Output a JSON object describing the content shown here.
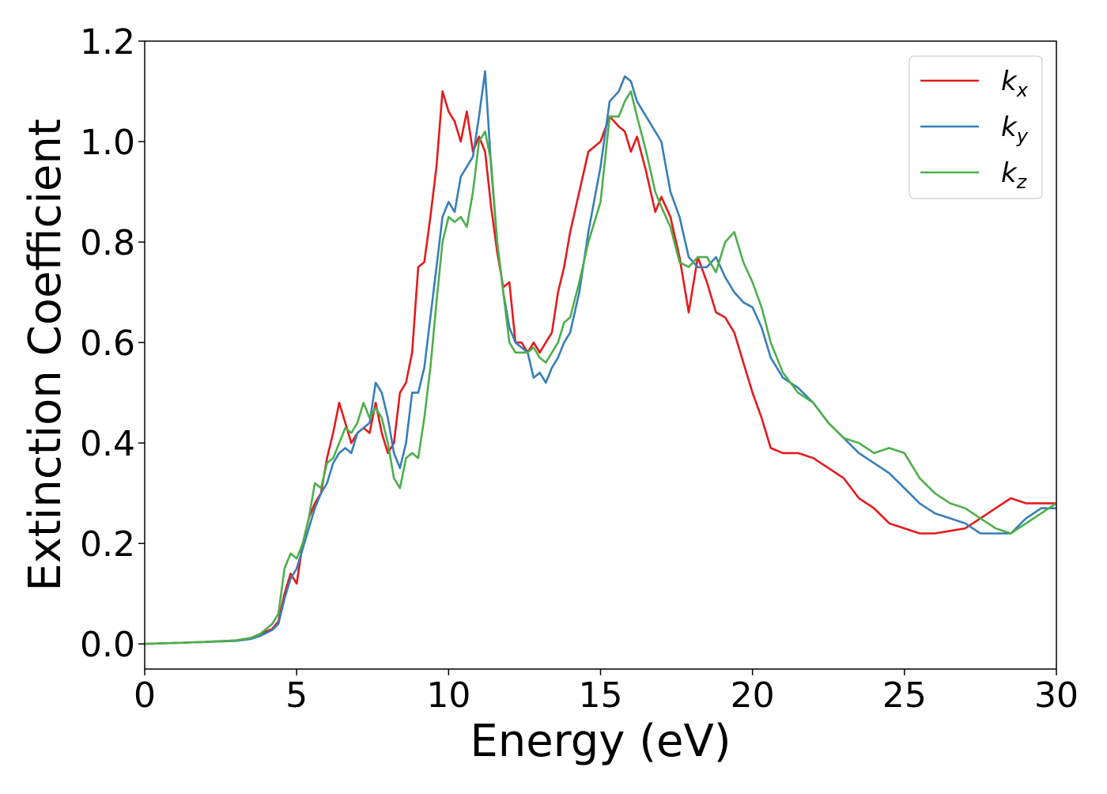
{
  "chart_data": {
    "type": "line",
    "xlabel": "Energy (eV)",
    "ylabel": "Extinction Coefficient",
    "xlim": [
      0,
      30
    ],
    "ylim": [
      -0.05,
      1.2
    ],
    "xticks": [
      "0",
      "5",
      "10",
      "15",
      "20",
      "25",
      "30"
    ],
    "yticks": [
      "0.0",
      "0.2",
      "0.4",
      "0.6",
      "0.8",
      "1.0",
      "1.2"
    ],
    "grid": false,
    "legend_position": "top-right",
    "series": [
      {
        "name": "k",
        "subscript": "x",
        "color": "#e41a1c",
        "x": [
          0,
          1,
          2,
          3,
          3.5,
          3.8,
          4.0,
          4.2,
          4.4,
          4.6,
          4.8,
          5.0,
          5.2,
          5.4,
          5.6,
          5.8,
          6.0,
          6.2,
          6.4,
          6.6,
          6.8,
          7.0,
          7.2,
          7.4,
          7.6,
          7.8,
          8.0,
          8.2,
          8.4,
          8.6,
          8.8,
          9.0,
          9.2,
          9.4,
          9.6,
          9.8,
          10.0,
          10.2,
          10.4,
          10.6,
          10.8,
          11.0,
          11.2,
          11.4,
          11.6,
          11.8,
          12.0,
          12.2,
          12.4,
          12.6,
          12.8,
          13.0,
          13.2,
          13.4,
          13.6,
          13.8,
          14.0,
          14.3,
          14.6,
          15.0,
          15.3,
          15.6,
          15.8,
          16.0,
          16.2,
          16.5,
          16.8,
          17.0,
          17.3,
          17.6,
          17.9,
          18.2,
          18.5,
          18.8,
          19.1,
          19.4,
          19.7,
          20.0,
          20.3,
          20.6,
          21.0,
          21.5,
          22.0,
          22.5,
          23.0,
          23.5,
          24.0,
          24.5,
          25.0,
          25.5,
          26.0,
          26.5,
          27.0,
          27.5,
          28.0,
          28.5,
          29.0,
          29.5,
          30.0
        ],
        "y": [
          0.0,
          0.002,
          0.004,
          0.007,
          0.012,
          0.018,
          0.025,
          0.03,
          0.045,
          0.1,
          0.14,
          0.12,
          0.2,
          0.25,
          0.28,
          0.3,
          0.37,
          0.42,
          0.48,
          0.44,
          0.4,
          0.42,
          0.43,
          0.42,
          0.48,
          0.42,
          0.38,
          0.4,
          0.5,
          0.52,
          0.58,
          0.75,
          0.76,
          0.85,
          0.95,
          1.1,
          1.06,
          1.04,
          1.0,
          1.06,
          0.98,
          1.01,
          0.98,
          0.87,
          0.78,
          0.71,
          0.72,
          0.6,
          0.6,
          0.58,
          0.6,
          0.58,
          0.6,
          0.62,
          0.7,
          0.75,
          0.82,
          0.9,
          0.98,
          1.0,
          1.05,
          1.03,
          1.02,
          0.98,
          1.01,
          0.94,
          0.86,
          0.89,
          0.85,
          0.77,
          0.66,
          0.77,
          0.72,
          0.66,
          0.65,
          0.62,
          0.56,
          0.5,
          0.45,
          0.39,
          0.38,
          0.38,
          0.37,
          0.35,
          0.33,
          0.29,
          0.27,
          0.24,
          0.23,
          0.22,
          0.22,
          0.225,
          0.23,
          0.25,
          0.27,
          0.29,
          0.28,
          0.28,
          0.28
        ]
      },
      {
        "name": "k",
        "subscript": "y",
        "color": "#377eb8",
        "x": [
          0,
          1,
          2,
          3,
          3.5,
          3.8,
          4.0,
          4.2,
          4.4,
          4.6,
          4.8,
          5.0,
          5.2,
          5.4,
          5.6,
          5.8,
          6.0,
          6.2,
          6.4,
          6.6,
          6.8,
          7.0,
          7.2,
          7.4,
          7.6,
          7.8,
          8.0,
          8.2,
          8.4,
          8.6,
          8.8,
          9.0,
          9.2,
          9.4,
          9.6,
          9.8,
          10.0,
          10.2,
          10.4,
          10.6,
          10.8,
          11.0,
          11.2,
          11.4,
          11.6,
          11.8,
          12.0,
          12.2,
          12.4,
          12.6,
          12.8,
          13.0,
          13.2,
          13.4,
          13.6,
          13.8,
          14.0,
          14.3,
          14.6,
          15.0,
          15.3,
          15.6,
          15.8,
          16.0,
          16.2,
          16.5,
          16.8,
          17.0,
          17.3,
          17.6,
          17.9,
          18.2,
          18.5,
          18.8,
          19.1,
          19.4,
          19.7,
          20.0,
          20.3,
          20.6,
          21.0,
          21.5,
          22.0,
          22.5,
          23.0,
          23.5,
          24.0,
          24.5,
          25.0,
          25.5,
          26.0,
          26.5,
          27.0,
          27.5,
          28.0,
          28.5,
          29.0,
          29.5,
          30.0
        ],
        "y": [
          0.0,
          0.002,
          0.004,
          0.006,
          0.01,
          0.016,
          0.022,
          0.028,
          0.04,
          0.09,
          0.13,
          0.15,
          0.19,
          0.23,
          0.27,
          0.3,
          0.32,
          0.36,
          0.38,
          0.39,
          0.38,
          0.42,
          0.43,
          0.44,
          0.52,
          0.5,
          0.45,
          0.38,
          0.35,
          0.4,
          0.5,
          0.5,
          0.55,
          0.65,
          0.75,
          0.85,
          0.88,
          0.86,
          0.93,
          0.95,
          0.97,
          1.05,
          1.14,
          0.95,
          0.8,
          0.7,
          0.63,
          0.6,
          0.59,
          0.58,
          0.53,
          0.54,
          0.52,
          0.55,
          0.57,
          0.6,
          0.62,
          0.7,
          0.82,
          0.95,
          1.08,
          1.1,
          1.13,
          1.12,
          1.08,
          1.05,
          1.02,
          1.0,
          0.9,
          0.85,
          0.77,
          0.75,
          0.75,
          0.77,
          0.73,
          0.7,
          0.68,
          0.67,
          0.63,
          0.57,
          0.53,
          0.51,
          0.48,
          0.44,
          0.41,
          0.38,
          0.36,
          0.34,
          0.31,
          0.28,
          0.26,
          0.25,
          0.24,
          0.22,
          0.22,
          0.22,
          0.25,
          0.27,
          0.27
        ]
      },
      {
        "name": "k",
        "subscript": "z",
        "color": "#4daf4a",
        "x": [
          0,
          1,
          2,
          3,
          3.5,
          3.8,
          4.0,
          4.2,
          4.4,
          4.6,
          4.8,
          5.0,
          5.2,
          5.4,
          5.6,
          5.8,
          6.0,
          6.2,
          6.4,
          6.6,
          6.8,
          7.0,
          7.2,
          7.4,
          7.6,
          7.8,
          8.0,
          8.2,
          8.4,
          8.6,
          8.8,
          9.0,
          9.2,
          9.4,
          9.6,
          9.8,
          10.0,
          10.2,
          10.4,
          10.6,
          10.8,
          11.0,
          11.2,
          11.4,
          11.6,
          11.8,
          12.0,
          12.2,
          12.4,
          12.6,
          12.8,
          13.0,
          13.2,
          13.4,
          13.6,
          13.8,
          14.0,
          14.3,
          14.6,
          15.0,
          15.3,
          15.6,
          15.8,
          16.0,
          16.2,
          16.5,
          16.8,
          17.0,
          17.3,
          17.6,
          17.9,
          18.2,
          18.5,
          18.8,
          19.1,
          19.4,
          19.7,
          20.0,
          20.3,
          20.6,
          21.0,
          21.5,
          22.0,
          22.5,
          23.0,
          23.5,
          24.0,
          24.5,
          25.0,
          25.5,
          26.0,
          26.5,
          27.0,
          27.5,
          28.0,
          28.5,
          29.0,
          29.5,
          30.0
        ],
        "y": [
          0.0,
          0.002,
          0.004,
          0.007,
          0.012,
          0.02,
          0.03,
          0.04,
          0.06,
          0.15,
          0.18,
          0.17,
          0.2,
          0.25,
          0.32,
          0.31,
          0.36,
          0.37,
          0.4,
          0.43,
          0.42,
          0.44,
          0.48,
          0.45,
          0.47,
          0.45,
          0.4,
          0.33,
          0.31,
          0.37,
          0.38,
          0.37,
          0.45,
          0.55,
          0.68,
          0.8,
          0.85,
          0.84,
          0.85,
          0.83,
          0.9,
          1.0,
          1.02,
          0.96,
          0.8,
          0.7,
          0.6,
          0.58,
          0.58,
          0.58,
          0.59,
          0.57,
          0.56,
          0.58,
          0.6,
          0.64,
          0.65,
          0.72,
          0.8,
          0.88,
          1.05,
          1.05,
          1.08,
          1.1,
          1.05,
          0.98,
          0.9,
          0.87,
          0.83,
          0.76,
          0.75,
          0.77,
          0.77,
          0.74,
          0.8,
          0.82,
          0.76,
          0.72,
          0.67,
          0.6,
          0.54,
          0.5,
          0.48,
          0.44,
          0.41,
          0.4,
          0.38,
          0.39,
          0.38,
          0.33,
          0.3,
          0.28,
          0.27,
          0.25,
          0.23,
          0.22,
          0.24,
          0.26,
          0.28
        ]
      }
    ]
  }
}
